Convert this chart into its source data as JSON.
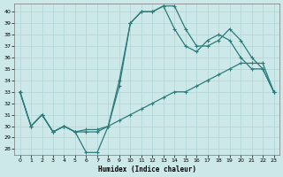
{
  "xlabel": "Humidex (Indice chaleur)",
  "bg_color": "#cce8e8",
  "line_color": "#2d7b7b",
  "grid_color": "#b0d4d4",
  "xlim": [
    -0.5,
    23.5
  ],
  "ylim": [
    27.5,
    40.7
  ],
  "xticks": [
    0,
    1,
    2,
    3,
    4,
    5,
    6,
    7,
    8,
    9,
    10,
    11,
    12,
    13,
    14,
    15,
    16,
    17,
    18,
    19,
    20,
    21,
    22,
    23
  ],
  "yticks": [
    28,
    29,
    30,
    31,
    32,
    33,
    34,
    35,
    36,
    37,
    38,
    39,
    40
  ],
  "line1_x": [
    0,
    1,
    2,
    3,
    4,
    5,
    6,
    7,
    8,
    9,
    10,
    11,
    12,
    13,
    14,
    15,
    16,
    17,
    18,
    19,
    20,
    21,
    22,
    23
  ],
  "line1_y": [
    33,
    30,
    31,
    29.5,
    30,
    29.5,
    27.7,
    27.7,
    30,
    33.5,
    39,
    40,
    40,
    40.5,
    40.5,
    38.5,
    37,
    37,
    37.5,
    38.5,
    37.5,
    36,
    35,
    33
  ],
  "line2_x": [
    0,
    1,
    2,
    3,
    4,
    5,
    6,
    7,
    8,
    9,
    10,
    11,
    12,
    13,
    14,
    15,
    16,
    17,
    18,
    19,
    20,
    21,
    22,
    23
  ],
  "line2_y": [
    33,
    30,
    31,
    29.5,
    30,
    29.5,
    29.5,
    29.5,
    30,
    34,
    39,
    40,
    40,
    40.5,
    38.5,
    37,
    36.5,
    37.5,
    38,
    37.5,
    36,
    35,
    35,
    33
  ],
  "line3_x": [
    0,
    1,
    2,
    3,
    4,
    5,
    6,
    7,
    8,
    9,
    10,
    11,
    12,
    13,
    14,
    15,
    16,
    17,
    18,
    19,
    20,
    21,
    22,
    23
  ],
  "line3_y": [
    33,
    30,
    31,
    29.5,
    30,
    29.5,
    29.7,
    29.7,
    30,
    30.5,
    31,
    31.5,
    32,
    32.5,
    33,
    33,
    33.5,
    34,
    34.5,
    35,
    35.5,
    35.5,
    35.5,
    33
  ]
}
